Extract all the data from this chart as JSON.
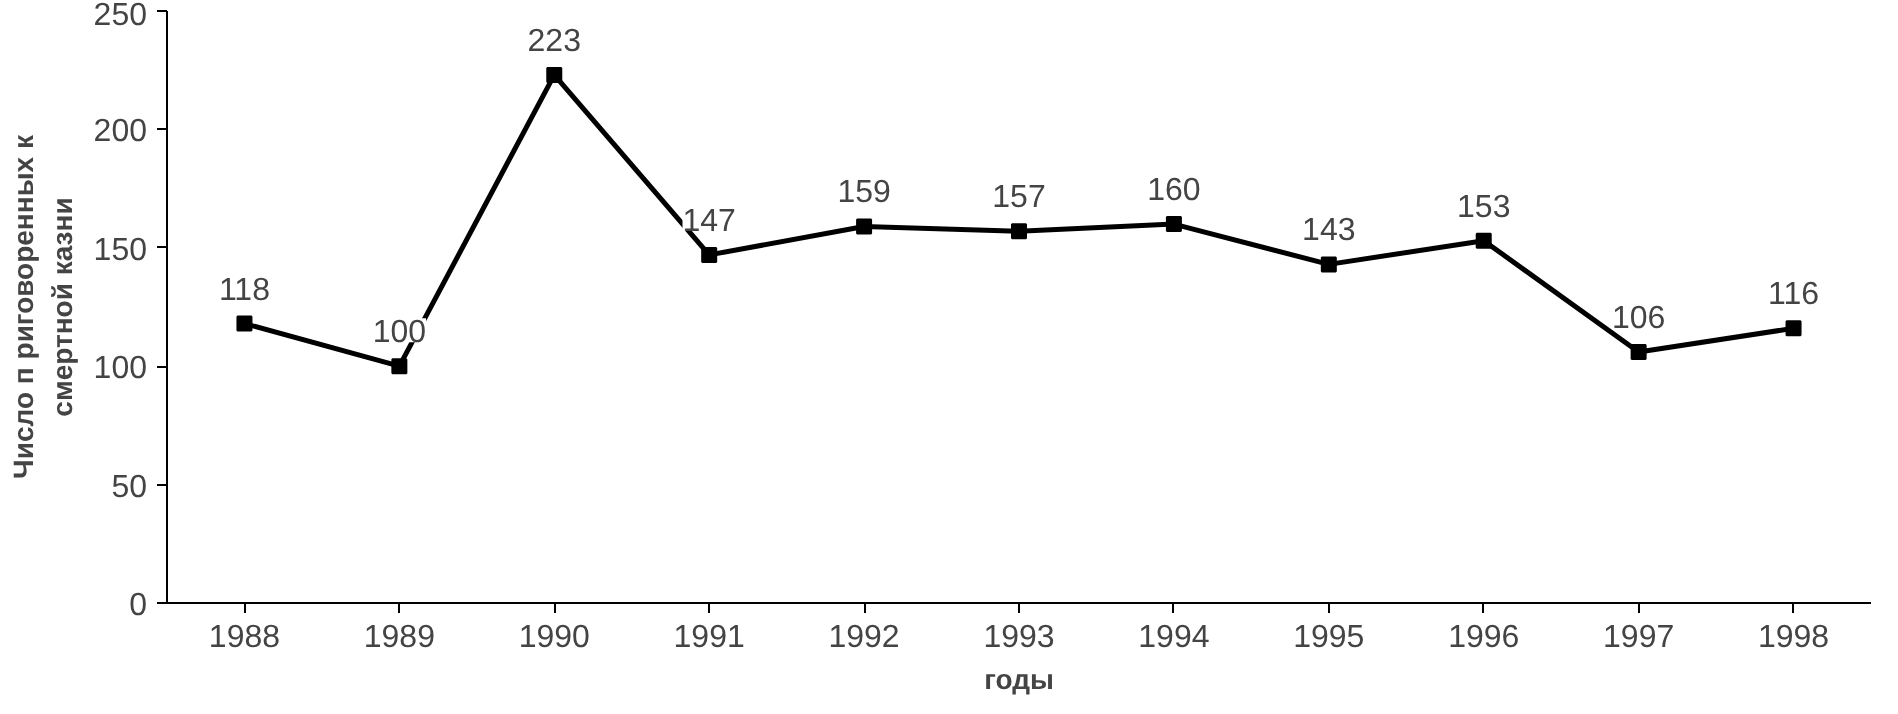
{
  "chart_data": {
    "type": "line",
    "categories": [
      "1988",
      "1989",
      "1990",
      "1991",
      "1992",
      "1993",
      "1994",
      "1995",
      "1996",
      "1997",
      "1998"
    ],
    "series": [
      {
        "color": "#000000",
        "values": [
          118,
          100,
          223,
          147,
          159,
          157,
          160,
          143,
          153,
          106,
          116
        ]
      }
    ],
    "xlabel": "годы",
    "ylabel": "Число п риговоренных к\nсмертной казни",
    "ylim": [
      0,
      250
    ],
    "yticks": [
      0,
      50,
      100,
      150,
      200,
      250
    ],
    "data_labels": true,
    "marker": "square",
    "grid": false
  }
}
